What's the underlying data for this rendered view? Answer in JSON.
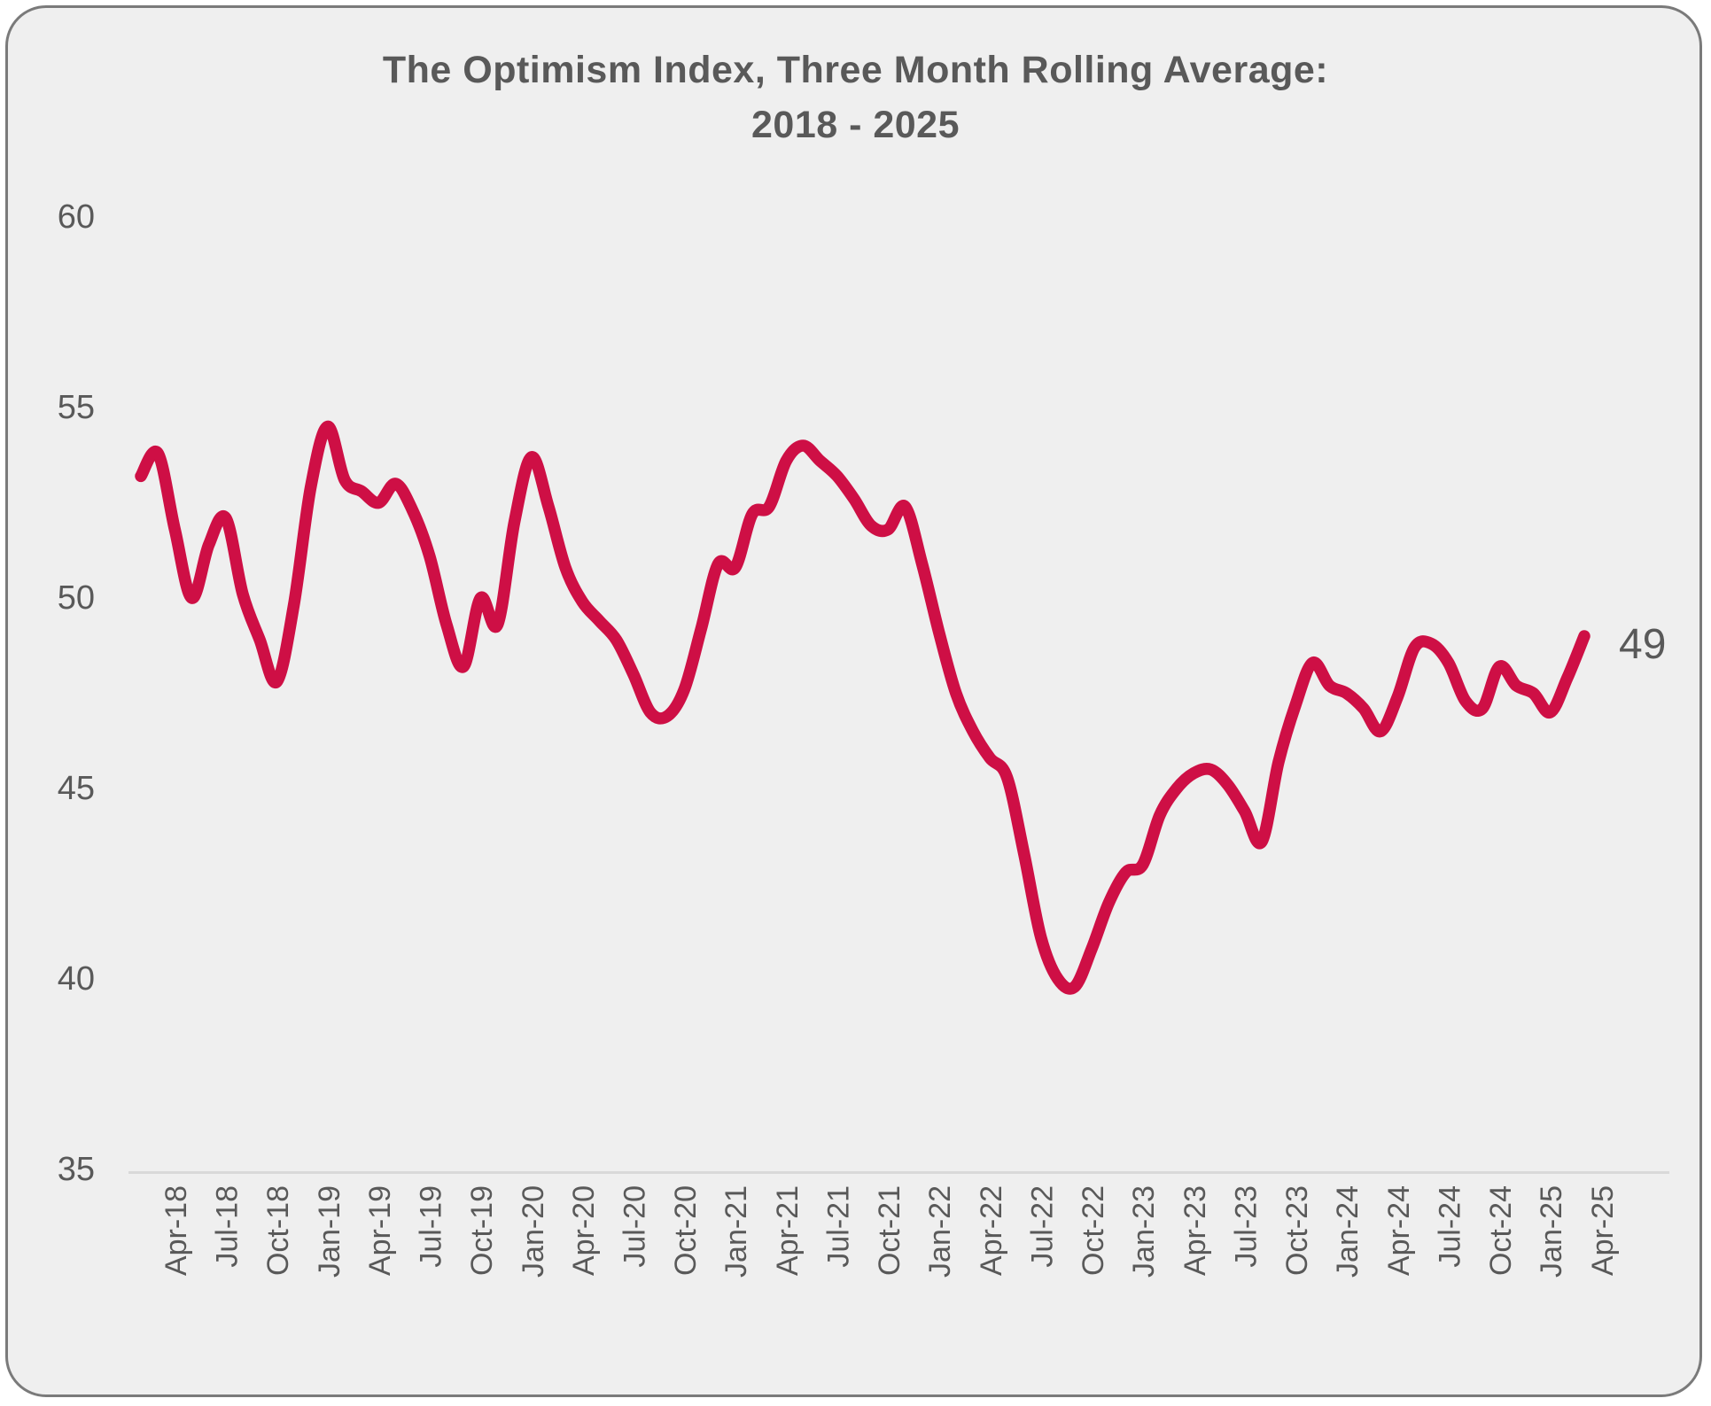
{
  "title": {
    "line1": "The Optimism Index, Three Month Rolling Average:",
    "line2": "2018 - 2025"
  },
  "colors": {
    "card_background": "#EFEFEF",
    "card_border": "#7A7A7A",
    "text": "#595959",
    "axis_line": "#D9D9D9",
    "series_line": "#CE0F45"
  },
  "chart_data": {
    "type": "line",
    "title": "The Optimism Index, Three Month Rolling Average: 2018 - 2025",
    "grid": false,
    "legend": "none",
    "ylim": [
      35,
      60
    ],
    "y_ticks": [
      60,
      55,
      50,
      45,
      40,
      35
    ],
    "x_tick_labels": [
      "Apr-18",
      "Jul-18",
      "Oct-18",
      "Jan-19",
      "Apr-19",
      "Jul-19",
      "Oct-19",
      "Jan-20",
      "Apr-20",
      "Jul-20",
      "Oct-20",
      "Jan-21",
      "Apr-21",
      "Jul-21",
      "Oct-21",
      "Jan-22",
      "Apr-22",
      "Jul-22",
      "Oct-22",
      "Jan-23",
      "Apr-23",
      "Jul-23",
      "Oct-23",
      "Jan-24",
      "Apr-24",
      "Jul-24",
      "Oct-24",
      "Jan-25",
      "Apr-25"
    ],
    "x_tick_every_n_months": 3,
    "end_label": "49",
    "series": [
      {
        "name": "Optimism Index, three month rolling average",
        "color": "#CE0F45",
        "x": [
          "Apr-18",
          "May-18",
          "Jun-18",
          "Jul-18",
          "Aug-18",
          "Sep-18",
          "Oct-18",
          "Nov-18",
          "Dec-18",
          "Jan-19",
          "Feb-19",
          "Mar-19",
          "Apr-19",
          "May-19",
          "Jun-19",
          "Jul-19",
          "Aug-19",
          "Sep-19",
          "Oct-19",
          "Nov-19",
          "Dec-19",
          "Jan-20",
          "Feb-20",
          "Mar-20",
          "Apr-20",
          "May-20",
          "Jun-20",
          "Jul-20",
          "Aug-20",
          "Sep-20",
          "Oct-20",
          "Nov-20",
          "Dec-20",
          "Jan-21",
          "Feb-21",
          "Mar-21",
          "Apr-21",
          "May-21",
          "Jun-21",
          "Jul-21",
          "Aug-21",
          "Sep-21",
          "Oct-21",
          "Nov-21",
          "Dec-21",
          "Jan-22",
          "Feb-22",
          "Mar-22",
          "Apr-22",
          "May-22",
          "Jun-22",
          "Jul-22",
          "Aug-22",
          "Sep-22",
          "Oct-22",
          "Nov-22",
          "Dec-22",
          "Jan-23",
          "Feb-23",
          "Mar-23",
          "Apr-23",
          "May-23",
          "Jun-23",
          "Jul-23",
          "Aug-23",
          "Sep-23",
          "Oct-23",
          "Nov-23",
          "Dec-23",
          "Jan-24",
          "Feb-24",
          "Mar-24",
          "Apr-24",
          "May-24",
          "Jun-24",
          "Jul-24",
          "Aug-24",
          "Sep-24",
          "Oct-24",
          "Nov-24",
          "Dec-24",
          "Jan-25",
          "Feb-25",
          "Mar-25",
          "Apr-25",
          "May-25"
        ],
        "values": [
          53.2,
          53.8,
          51.8,
          50.0,
          51.4,
          52.1,
          50.1,
          48.9,
          47.8,
          49.8,
          52.9,
          54.5,
          53.1,
          52.8,
          52.5,
          53.0,
          52.3,
          51.1,
          49.3,
          48.2,
          50.0,
          49.3,
          52.0,
          53.7,
          52.4,
          50.8,
          49.9,
          49.4,
          48.9,
          48.0,
          47.0,
          46.9,
          47.6,
          49.2,
          50.9,
          50.8,
          52.2,
          52.4,
          53.6,
          54.0,
          53.6,
          53.2,
          52.6,
          51.9,
          51.8,
          52.4,
          50.9,
          49.1,
          47.5,
          46.5,
          45.8,
          45.3,
          43.3,
          41.1,
          40.0,
          39.8,
          40.8,
          42.0,
          42.8,
          43.0,
          44.3,
          45.0,
          45.4,
          45.5,
          45.1,
          44.4,
          43.6,
          45.7,
          47.2,
          48.3,
          47.7,
          47.5,
          47.1,
          46.5,
          47.4,
          48.7,
          48.8,
          48.3,
          47.3,
          47.1,
          48.2,
          47.7,
          47.5,
          47.0,
          47.9,
          49.0
        ]
      }
    ]
  }
}
